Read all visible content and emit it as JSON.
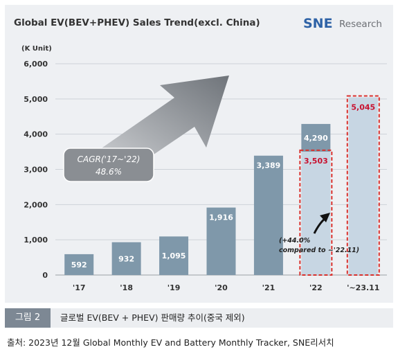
{
  "chart_data": {
    "type": "bar",
    "title": "Global EV(BEV+PHEV)  Sales Trend(excl. China)",
    "unit_label": "(K Unit)",
    "categories": [
      "'17",
      "'18",
      "'19",
      "'20",
      "'21",
      "'22",
      "'~23.11"
    ],
    "values": [
      592,
      932,
      1095,
      1916,
      3389,
      4290,
      5045
    ],
    "comparison_value_22": 3503,
    "comparison_label_22": "3,503",
    "value_labels": [
      "592",
      "932",
      "1,095",
      "1,916",
      "3,389",
      "4,290",
      "5,045"
    ],
    "ylim": [
      0,
      6000
    ],
    "yticks": [
      0,
      1000,
      2000,
      3000,
      4000,
      5000,
      6000
    ],
    "ytick_labels": [
      "0",
      "1,000",
      "2,000",
      "3,000",
      "4,000",
      "5,000",
      "6,000"
    ],
    "grid": true,
    "cagr_label_line1": "CAGR('17~'22)",
    "cagr_label_line2": "48.6%",
    "growth_note_line1": "(+44.0%",
    "growth_note_line2": "compared to ~'22.11)"
  },
  "logo": {
    "brand": "SNE",
    "suffix": "Research"
  },
  "colors": {
    "bar": "#7f98aa",
    "bar_light": "#c7d6e3",
    "dashed": "#d9302c",
    "highlight_text": "#c8102e",
    "arrow": "#7a7f85"
  },
  "caption": {
    "tag": "그림 2",
    "text": "글로벌 EV(BEV + PHEV) 판매량 추이(중국 제외)"
  },
  "source": "출처: 2023년 12월 Global Monthly EV and Battery Monthly Tracker, SNE리서치"
}
